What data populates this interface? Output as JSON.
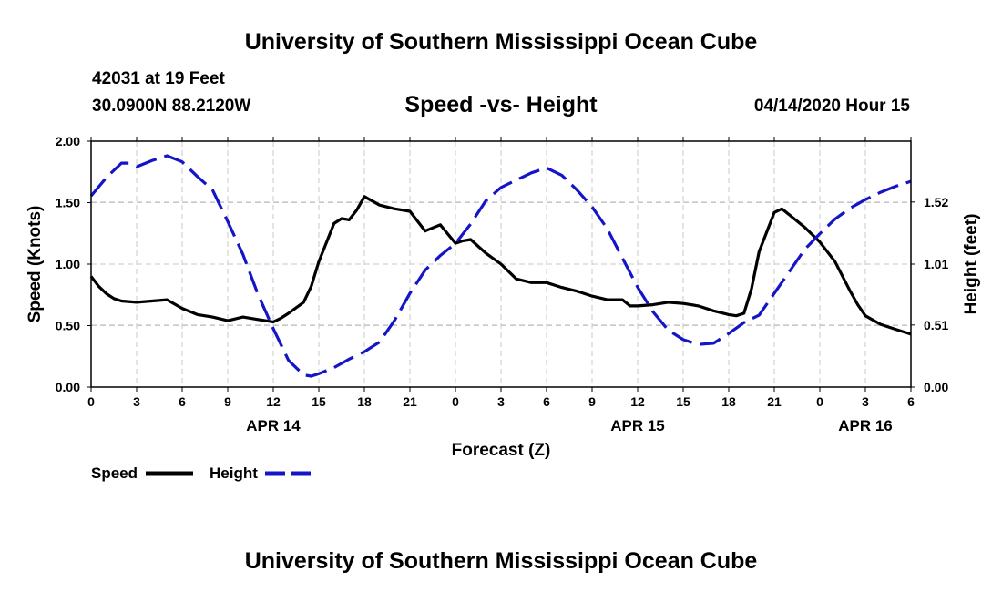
{
  "header": {
    "title": "University of Southern Mississippi Ocean Cube",
    "station": "42031 at 19 Feet",
    "location": "30.0900N 88.2120W",
    "subtitle": "Speed -vs- Height",
    "datetime": "04/14/2020 Hour 15"
  },
  "footer": {
    "title": "University of Southern Mississippi Ocean Cube"
  },
  "colors": {
    "speed": "#000000",
    "height": "#1515c8",
    "grid": "#c8c8c8",
    "axis": "#000000"
  },
  "chart_data": {
    "type": "line",
    "title": "Speed -vs- Height",
    "xlabel": "Forecast (Z)",
    "ylabel_left": "Speed (Knots)",
    "ylabel_right": "Height (feet)",
    "grid": true,
    "x_unit": "hours since APR 14 00Z",
    "xlim": [
      0,
      54
    ],
    "ylim_left": [
      0,
      2.0
    ],
    "ylim_right": [
      0,
      2.02
    ],
    "x_ticks": [
      {
        "x": 0,
        "label": "0"
      },
      {
        "x": 3,
        "label": "3"
      },
      {
        "x": 6,
        "label": "6"
      },
      {
        "x": 9,
        "label": "9"
      },
      {
        "x": 12,
        "label": "12"
      },
      {
        "x": 15,
        "label": "15"
      },
      {
        "x": 18,
        "label": "18"
      },
      {
        "x": 21,
        "label": "21"
      },
      {
        "x": 24,
        "label": "0"
      },
      {
        "x": 27,
        "label": "3"
      },
      {
        "x": 30,
        "label": "6"
      },
      {
        "x": 33,
        "label": "9"
      },
      {
        "x": 36,
        "label": "12"
      },
      {
        "x": 39,
        "label": "15"
      },
      {
        "x": 42,
        "label": "18"
      },
      {
        "x": 45,
        "label": "21"
      },
      {
        "x": 48,
        "label": "0"
      },
      {
        "x": 51,
        "label": "3"
      },
      {
        "x": 54,
        "label": "6"
      }
    ],
    "date_labels": [
      {
        "x": 12,
        "label": "APR 14"
      },
      {
        "x": 36,
        "label": "APR 15"
      },
      {
        "x": 51,
        "label": "APR 16"
      }
    ],
    "left_ticks": [
      {
        "y": 0.0,
        "label": "0.00"
      },
      {
        "y": 0.5,
        "label": "0.50"
      },
      {
        "y": 1.0,
        "label": "1.00"
      },
      {
        "y": 1.5,
        "label": "1.50"
      },
      {
        "y": 2.0,
        "label": "2.00"
      }
    ],
    "right_ticks": [
      {
        "y": 0.0,
        "label": "0.00"
      },
      {
        "y": 0.51,
        "label": "0.51"
      },
      {
        "y": 1.01,
        "label": "1.01"
      },
      {
        "y": 1.52,
        "label": "1.52"
      }
    ],
    "legend": [
      {
        "name": "Speed",
        "style": "solid"
      },
      {
        "name": "Height",
        "style": "dashed"
      }
    ],
    "series": [
      {
        "name": "Speed",
        "axis": "left",
        "style": "solid",
        "x": [
          0,
          0.5,
          1,
          1.5,
          2,
          3,
          4,
          5,
          6,
          7,
          8,
          9,
          10,
          11,
          12,
          12.5,
          13,
          14,
          14.5,
          15,
          16,
          16.5,
          17,
          17.5,
          18,
          19,
          20,
          21,
          22,
          23,
          24,
          24.5,
          25,
          26,
          27,
          28,
          29,
          30,
          31,
          32,
          33,
          34,
          35,
          35.5,
          36,
          37,
          38,
          39,
          40,
          41,
          42,
          42.5,
          43,
          43.5,
          44,
          45,
          45.5,
          46,
          47,
          48,
          49,
          50,
          50.5,
          51,
          52,
          53,
          54
        ],
        "values": [
          0.9,
          0.82,
          0.76,
          0.72,
          0.7,
          0.69,
          0.7,
          0.71,
          0.64,
          0.59,
          0.57,
          0.54,
          0.57,
          0.55,
          0.53,
          0.56,
          0.6,
          0.69,
          0.82,
          1.02,
          1.33,
          1.37,
          1.36,
          1.44,
          1.55,
          1.48,
          1.45,
          1.43,
          1.27,
          1.32,
          1.17,
          1.19,
          1.2,
          1.09,
          1.0,
          0.88,
          0.85,
          0.85,
          0.81,
          0.78,
          0.74,
          0.71,
          0.71,
          0.66,
          0.66,
          0.67,
          0.69,
          0.68,
          0.66,
          0.62,
          0.59,
          0.58,
          0.6,
          0.8,
          1.1,
          1.42,
          1.45,
          1.4,
          1.3,
          1.18,
          1.02,
          0.78,
          0.67,
          0.58,
          0.51,
          0.47,
          0.43
        ]
      },
      {
        "name": "Height",
        "axis": "right",
        "style": "dashed",
        "x": [
          0,
          1,
          2,
          2.5,
          3,
          4,
          5,
          6,
          7,
          8,
          9,
          10,
          11,
          12,
          13,
          14,
          14.5,
          15,
          16,
          17,
          18,
          19,
          20,
          21,
          22,
          23,
          24,
          25,
          26,
          27,
          28,
          29,
          30,
          31,
          32,
          33,
          34,
          35,
          36,
          37,
          38,
          39,
          40,
          41,
          42,
          43,
          44,
          45,
          46,
          47,
          48,
          49,
          50,
          51,
          52,
          53,
          54
        ],
        "values": [
          1.57,
          1.72,
          1.84,
          1.84,
          1.81,
          1.86,
          1.9,
          1.85,
          1.73,
          1.62,
          1.36,
          1.09,
          0.76,
          0.48,
          0.22,
          0.1,
          0.09,
          0.11,
          0.16,
          0.23,
          0.29,
          0.37,
          0.55,
          0.77,
          0.96,
          1.08,
          1.18,
          1.34,
          1.53,
          1.64,
          1.7,
          1.76,
          1.8,
          1.74,
          1.62,
          1.48,
          1.3,
          1.06,
          0.82,
          0.62,
          0.47,
          0.39,
          0.35,
          0.36,
          0.44,
          0.53,
          0.59,
          0.77,
          0.95,
          1.13,
          1.26,
          1.38,
          1.47,
          1.54,
          1.6,
          1.65,
          1.69
        ]
      }
    ]
  }
}
